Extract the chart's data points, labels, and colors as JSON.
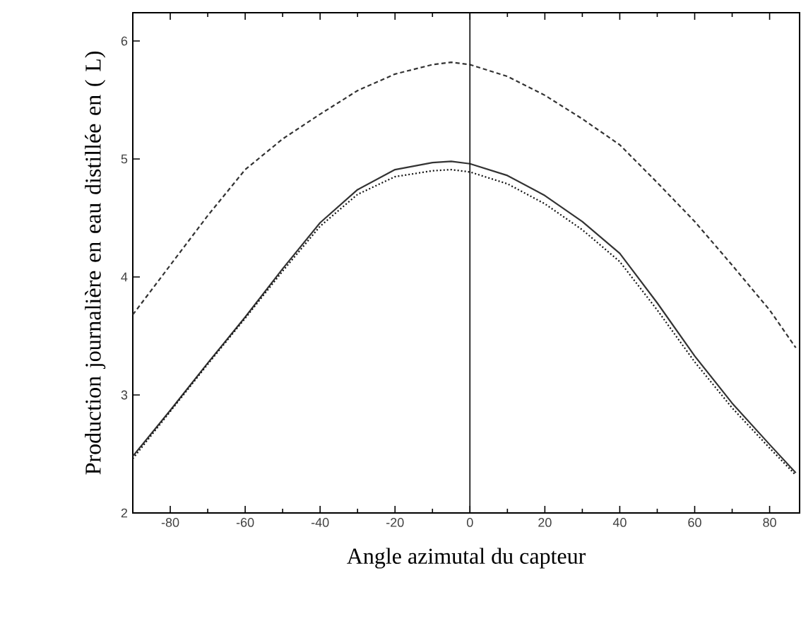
{
  "chart_data": {
    "type": "line",
    "xlabel": "Angle azimutal du capteur",
    "ylabel": "Production journalière en eau distillée en ( L)",
    "x": [
      -90,
      -80,
      -70,
      -60,
      -50,
      -40,
      -30,
      -20,
      -10,
      -5,
      0,
      10,
      20,
      30,
      40,
      50,
      60,
      70,
      80,
      87
    ],
    "xlim": [
      -90,
      88
    ],
    "ylim": [
      2,
      6.24
    ],
    "xticks": [
      -80,
      -60,
      -40,
      -20,
      0,
      20,
      40,
      60,
      80
    ],
    "yticks": [
      2,
      3,
      4,
      5,
      6
    ],
    "series": [
      {
        "color": "#333333",
        "line_style": "dashed",
        "values": [
          3.68,
          4.1,
          4.52,
          4.91,
          5.17,
          5.38,
          5.58,
          5.72,
          5.8,
          5.82,
          5.8,
          5.7,
          5.54,
          5.34,
          5.12,
          4.8,
          4.47,
          4.1,
          3.72,
          3.4
        ]
      },
      {
        "color": "#333333",
        "line_style": "solid",
        "values": [
          2.48,
          2.87,
          3.27,
          3.66,
          4.07,
          4.46,
          4.74,
          4.91,
          4.97,
          4.98,
          4.96,
          4.86,
          4.69,
          4.47,
          4.2,
          3.78,
          3.33,
          2.93,
          2.58,
          2.34
        ]
      },
      {
        "color": "#111111",
        "line_style": "dotted",
        "values": [
          2.46,
          2.86,
          3.26,
          3.65,
          4.05,
          4.43,
          4.7,
          4.85,
          4.9,
          4.91,
          4.89,
          4.79,
          4.62,
          4.4,
          4.13,
          3.72,
          3.28,
          2.89,
          2.55,
          2.32
        ]
      }
    ],
    "ref_lines": [
      {
        "axis": "x",
        "value": 0,
        "color": "#111111"
      }
    ],
    "grid": false
  }
}
